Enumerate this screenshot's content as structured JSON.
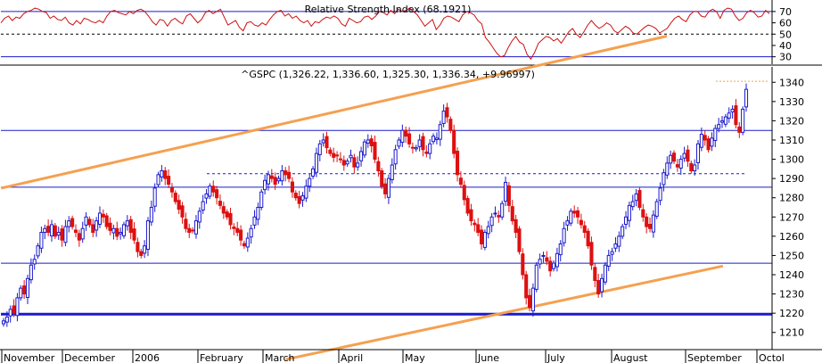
{
  "chart_data": [
    {
      "type": "line",
      "title": "Relative Strength Index (68.1921)",
      "ylim": [
        25,
        77
      ],
      "y_ticks": [
        30,
        40,
        50,
        60,
        70
      ],
      "reference_lines": [
        {
          "value": 70,
          "style": "solid",
          "color": "#1a1acc"
        },
        {
          "value": 50,
          "style": "dashed",
          "color": "#000000"
        },
        {
          "value": 30,
          "style": "solid",
          "color": "#1a1acc"
        }
      ],
      "series": [
        {
          "color": "#cc1111",
          "values": [
            60,
            64,
            66,
            62,
            65,
            64,
            68,
            70,
            71,
            73,
            72,
            70,
            69,
            64,
            66,
            63,
            62,
            65,
            60,
            58,
            62,
            59,
            64,
            63,
            61,
            60,
            62,
            60,
            66,
            70,
            71,
            69,
            68,
            67,
            70,
            68,
            71,
            72,
            70,
            66,
            61,
            58,
            63,
            62,
            57,
            62,
            64,
            61,
            59,
            66,
            68,
            64,
            60,
            63,
            69,
            71,
            68,
            70,
            72,
            65,
            58,
            60,
            62,
            56,
            53,
            60,
            61,
            58,
            57,
            60,
            58,
            63,
            67,
            70,
            71,
            66,
            68,
            64,
            66,
            62,
            60,
            62,
            57,
            61,
            60,
            63,
            65,
            64,
            66,
            64,
            59,
            57,
            64,
            62,
            60,
            61,
            65,
            66,
            63,
            66,
            70,
            69,
            67,
            71,
            68,
            72,
            70,
            71,
            73,
            70,
            67,
            62,
            57,
            60,
            63,
            54,
            58,
            64,
            66,
            65,
            63,
            61,
            67,
            70,
            69,
            67,
            62,
            59,
            47,
            43,
            38,
            33,
            30,
            31,
            38,
            44,
            48,
            43,
            41,
            32,
            28,
            34,
            42,
            45,
            48,
            47,
            44,
            46,
            42,
            47,
            52,
            55,
            50,
            47,
            52,
            58,
            62,
            58,
            55,
            57,
            60,
            58,
            53,
            51,
            54,
            57,
            55,
            51,
            50,
            53,
            56,
            58,
            57,
            55,
            51,
            53,
            55,
            60,
            64,
            66,
            63,
            61,
            67,
            70,
            70,
            66,
            65,
            70,
            72,
            70,
            64,
            71,
            73,
            72,
            66,
            62,
            64,
            69,
            71,
            69,
            65,
            66,
            71,
            68
          ]
        }
      ]
    },
    {
      "type": "candlestick",
      "title": "^GSPC (1,326.22, 1,336.60, 1,325.30, 1,336.34, +9.96997)",
      "ylim": [
        1202,
        1348
      ],
      "y_ticks": [
        1210,
        1220,
        1230,
        1240,
        1250,
        1260,
        1270,
        1280,
        1290,
        1300,
        1310,
        1320,
        1330,
        1340
      ],
      "x_ticks": [
        "November",
        "December",
        "2006",
        "February",
        "March",
        "April",
        "May",
        "June",
        "July",
        "August",
        "September",
        "Octol"
      ],
      "up_color": "#1a1acc",
      "down_color": "#dd1111",
      "horizontal_lines": [
        {
          "value": 1315,
          "style": "solid",
          "color": "#1a1acc"
        },
        {
          "value": 1292.5,
          "style": "dashed",
          "color": "#1a1acc"
        },
        {
          "value": 1285.5,
          "style": "solid",
          "color": "#1a1acc"
        },
        {
          "value": 1246,
          "style": "solid",
          "color": "#1a1acc"
        },
        {
          "value": 1219.5,
          "style": "solid-thick",
          "color": "#1a1acc"
        },
        {
          "value": 1340.5,
          "style": "dotted",
          "color": "#f5a050"
        }
      ],
      "trend_lines": [
        {
          "from": {
            "date": "2005-10-31",
            "value": 1285
          },
          "to": {
            "date": "2006-08-24",
            "value": 1364
          },
          "color": "#f5a050"
        },
        {
          "from": {
            "date": "2006-03-07",
            "value": 1196
          },
          "to": {
            "date": "2006-09-18",
            "value": 1244.5
          },
          "color": "#f5a050"
        }
      ],
      "close": [
        1216,
        1218,
        1222,
        1220,
        1228,
        1233,
        1230,
        1238,
        1245,
        1248,
        1255,
        1262,
        1264,
        1262,
        1266,
        1260,
        1262,
        1258,
        1265,
        1268,
        1265,
        1262,
        1258,
        1264,
        1270,
        1266,
        1262,
        1268,
        1272,
        1270,
        1265,
        1263,
        1264,
        1260,
        1262,
        1266,
        1268,
        1262,
        1258,
        1252,
        1250,
        1255,
        1268,
        1275,
        1285,
        1292,
        1294,
        1290,
        1287,
        1283,
        1278,
        1274,
        1270,
        1264,
        1262,
        1263,
        1268,
        1273,
        1278,
        1282,
        1286,
        1283,
        1280,
        1276,
        1272,
        1270,
        1266,
        1264,
        1262,
        1258,
        1255,
        1259,
        1264,
        1270,
        1275,
        1283,
        1289,
        1292,
        1290,
        1287,
        1290,
        1294,
        1292,
        1290,
        1283,
        1280,
        1277,
        1281,
        1286,
        1290,
        1295,
        1303,
        1308,
        1310,
        1306,
        1303,
        1301,
        1302,
        1300,
        1297,
        1299,
        1302,
        1296,
        1298,
        1304,
        1309,
        1310,
        1307,
        1300,
        1294,
        1286,
        1282,
        1290,
        1297,
        1305,
        1310,
        1315,
        1312,
        1308,
        1306,
        1306,
        1310,
        1305,
        1303,
        1308,
        1312,
        1311,
        1318,
        1325,
        1322,
        1315,
        1303,
        1292,
        1287,
        1279,
        1272,
        1268,
        1266,
        1262,
        1256,
        1262,
        1265,
        1270,
        1272,
        1270,
        1277,
        1288,
        1276,
        1268,
        1262,
        1252,
        1240,
        1228,
        1223,
        1233,
        1245,
        1248,
        1250,
        1247,
        1242,
        1246,
        1251,
        1256,
        1264,
        1268,
        1273,
        1272,
        1270,
        1266,
        1262,
        1255,
        1245,
        1237,
        1230,
        1238,
        1245,
        1250,
        1252,
        1256,
        1260,
        1265,
        1270,
        1276,
        1278,
        1282,
        1275,
        1270,
        1265,
        1264,
        1271,
        1278,
        1285,
        1293,
        1298,
        1302,
        1299,
        1296,
        1300,
        1303,
        1299,
        1294,
        1297,
        1308,
        1313,
        1310,
        1305,
        1311,
        1316,
        1318,
        1320,
        1322,
        1324,
        1326,
        1318,
        1314,
        1326,
        1336.34
      ]
    }
  ]
}
